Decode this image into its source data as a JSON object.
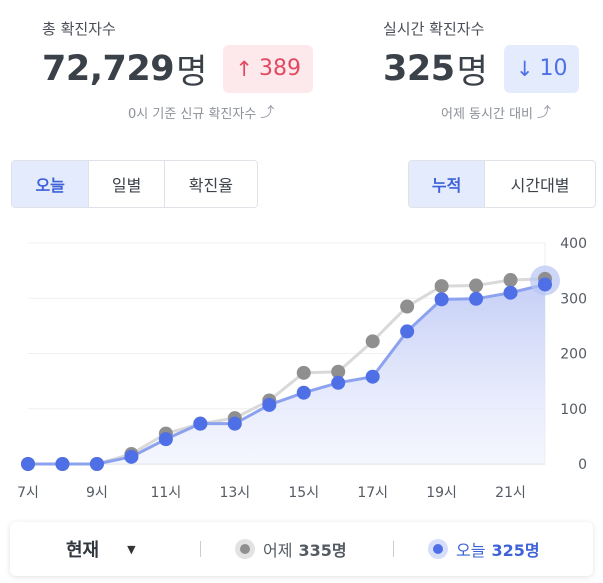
{
  "total": {
    "label": "총 확진자수",
    "value": "72,729",
    "unit": "명",
    "delta_arrow": "↑",
    "delta": "389",
    "note": "0시 기준 신규 확진자수",
    "note_icon": "curved-arrow-icon"
  },
  "realtime": {
    "label": "실시간 확진자수",
    "value": "325",
    "unit": "명",
    "delta_arrow": "↓",
    "delta": "10",
    "note": "어제 동시간 대비",
    "note_icon": "curved-arrow-icon"
  },
  "period_tabs": {
    "items": [
      "오늘",
      "일별",
      "확진율"
    ],
    "active": "오늘"
  },
  "mode_tabs": {
    "items": [
      "누적",
      "시간대별"
    ],
    "active": "누적"
  },
  "colors": {
    "today": "#4f6fe6",
    "yesterday": "#8f8f8f",
    "up": "#e24a62",
    "down": "#4d70e8"
  },
  "chart_data": {
    "type": "line",
    "x": [
      7,
      8,
      9,
      10,
      11,
      12,
      13,
      14,
      15,
      16,
      17,
      18,
      19,
      20,
      21,
      22
    ],
    "x_tick_labels": [
      "7시",
      "9시",
      "11시",
      "13시",
      "15시",
      "17시",
      "19시",
      "21시"
    ],
    "x_tick_values": [
      7,
      9,
      11,
      13,
      15,
      17,
      19,
      21
    ],
    "y_ticks": [
      0,
      100,
      200,
      300,
      400
    ],
    "ylim": [
      0,
      400
    ],
    "grid": true,
    "series": [
      {
        "name": "어제",
        "values": [
          0,
          0,
          0,
          18,
          55,
          73,
          83,
          115,
          165,
          167,
          222,
          285,
          322,
          323,
          333,
          335
        ]
      },
      {
        "name": "오늘",
        "values": [
          0,
          0,
          0,
          13,
          45,
          73,
          73,
          107,
          129,
          147,
          158,
          240,
          298,
          299,
          310,
          325
        ]
      }
    ]
  },
  "bottom": {
    "dropdown_label": "현재",
    "yesterday_label": "어제",
    "yesterday_value": "335명",
    "today_label": "오늘",
    "today_value": "325명"
  }
}
